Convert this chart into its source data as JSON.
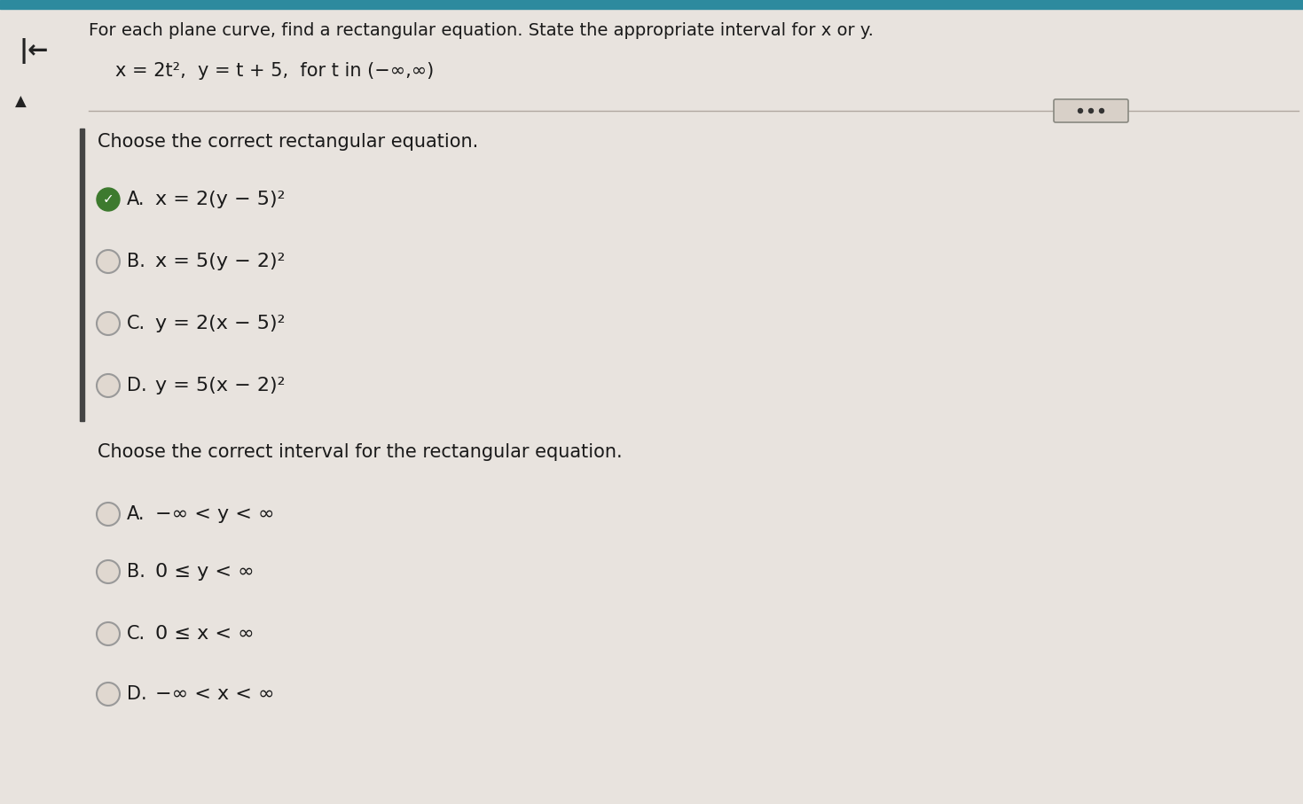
{
  "bg_color": "#ddd8d2",
  "panel_color": "#e8e3de",
  "title_line1": "For each plane curve, find a rectangular equation. State the appropriate interval for x or y.",
  "title_line2": "x = 2t²,  y = t + 5,  for t in (−∞,∞)",
  "section1_header": "Choose the correct rectangular equation.",
  "section2_header": "Choose the correct interval for the rectangular equation.",
  "eq_options": [
    {
      "label": "A.",
      "text": "x = 2(y − 5)²",
      "selected": true
    },
    {
      "label": "B.",
      "text": "x = 5(y − 2)²",
      "selected": false
    },
    {
      "label": "C.",
      "text": "y = 2(x − 5)²",
      "selected": false
    },
    {
      "label": "D.",
      "text": "y = 5(x − 2)²",
      "selected": false
    }
  ],
  "interval_options": [
    {
      "label": "A.",
      "text": "−∞ < y < ∞",
      "selected": false
    },
    {
      "label": "B.",
      "text": "0 ≤ y < ∞",
      "selected": false
    },
    {
      "label": "C.",
      "text": "0 ≤ x < ∞",
      "selected": false
    },
    {
      "label": "D.",
      "text": "−∞ < x < ∞",
      "selected": false
    }
  ],
  "teal_bar_color": "#2d8a9e",
  "selected_color": "#3d7a2e",
  "circle_color": "#999999",
  "circle_fill": "#e0d8d0",
  "text_color": "#1a1a1a",
  "line_color": "#b0a8a0",
  "left_bar_color": "#444444",
  "arrow_color": "#222222",
  "ellipsis_box_color": "#d8d0c8",
  "ellipsis_border_color": "#888880",
  "ellipsis_dot_color": "#333333"
}
